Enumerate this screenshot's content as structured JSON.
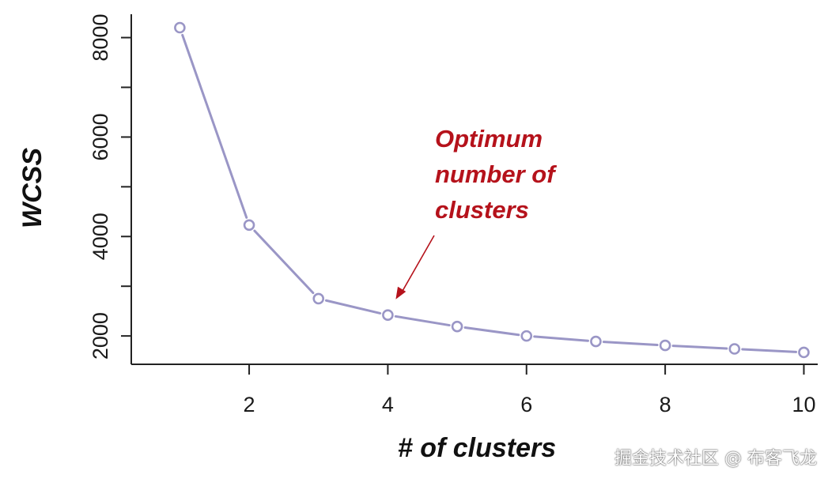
{
  "chart_data": {
    "type": "line",
    "title": "",
    "xlabel": "# of clusters",
    "ylabel": "WCSS",
    "x": [
      1,
      2,
      3,
      4,
      5,
      6,
      7,
      8,
      9,
      10
    ],
    "series": [
      {
        "values": [
          8200,
          4230,
          2750,
          2420,
          2190,
          2000,
          1890,
          1810,
          1740,
          1670
        ]
      }
    ],
    "xticks": [
      2,
      4,
      6,
      8,
      10
    ],
    "yticks": [
      2000,
      4000,
      6000,
      8000
    ],
    "xlim": [
      0.3,
      10.2
    ],
    "ylim": [
      1430,
      8470
    ],
    "grid": false,
    "marker": "open-circle",
    "line_color": "#9a96c6",
    "annotation": {
      "lines": [
        "Optimum",
        "number of",
        "clusters"
      ],
      "color": "#b5121b",
      "target_x": 4,
      "target_y": 2420
    }
  },
  "watermark": "掘金技术社区 @ 布客飞龙"
}
